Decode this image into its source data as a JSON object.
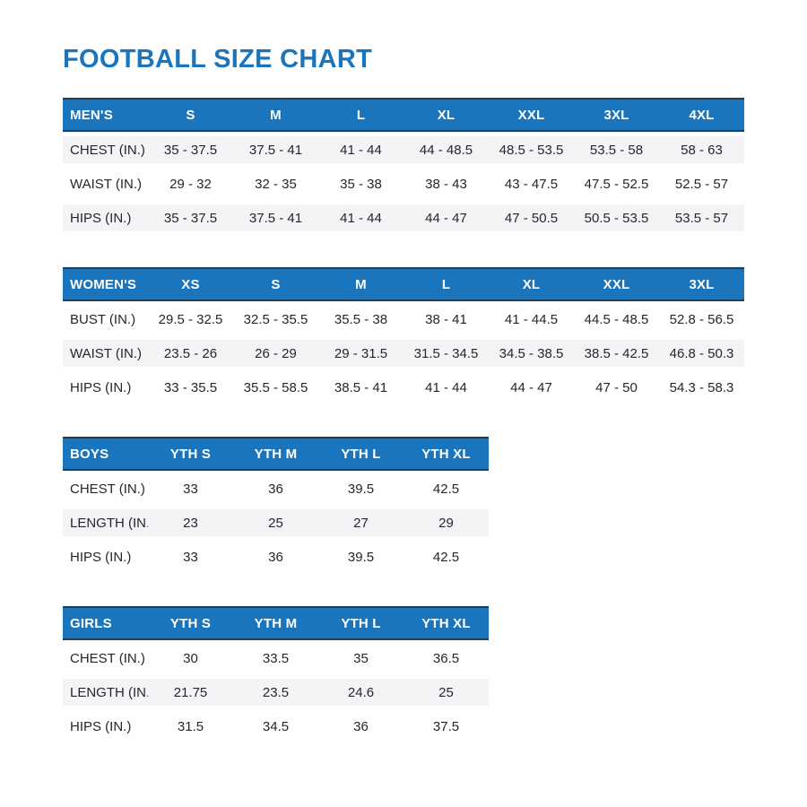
{
  "page": {
    "title": "FOOTBALL SIZE CHART"
  },
  "colors": {
    "accent": "#1b75bc",
    "accent_dark": "#1d3f5e",
    "header_text": "#ffffff",
    "body_text": "#26262b",
    "shaded_row_bg": "#f4f4f6",
    "page_bg": "#ffffff"
  },
  "tables": [
    {
      "id": "mens",
      "header": [
        "MEN'S",
        "S",
        "M",
        "L",
        "XL",
        "XXL",
        "3XL",
        "4XL"
      ],
      "rows": [
        {
          "label": "CHEST (IN.)",
          "values": [
            "35 - 37.5",
            "37.5 - 41",
            "41 - 44",
            "44 - 48.5",
            "48.5 - 53.5",
            "53.5 - 58",
            "58 - 63"
          ],
          "shaded": true
        },
        {
          "label": "WAIST (IN.)",
          "values": [
            "29 - 32",
            "32 - 35",
            "35 - 38",
            "38 - 43",
            "43 - 47.5",
            "47.5 - 52.5",
            "52.5 - 57"
          ],
          "shaded": false
        },
        {
          "label": "HIPS (IN.)",
          "values": [
            "35 - 37.5",
            "37.5 - 41",
            "41 - 44",
            "44 - 47",
            "47 - 50.5",
            "50.5 - 53.5",
            "53.5 - 57"
          ],
          "shaded": true
        }
      ]
    },
    {
      "id": "womens",
      "header": [
        "WOMEN'S",
        "XS",
        "S",
        "M",
        "L",
        "XL",
        "XXL",
        "3XL"
      ],
      "rows": [
        {
          "label": "BUST (IN.)",
          "values": [
            "29.5 - 32.5",
            "32.5 - 35.5",
            "35.5 - 38",
            "38 - 41",
            "41 - 44.5",
            "44.5 - 48.5",
            "52.8 - 56.5"
          ],
          "shaded": false
        },
        {
          "label": "WAIST (IN.)",
          "values": [
            "23.5 - 26",
            "26 - 29",
            "29 - 31.5",
            "31.5 - 34.5",
            "34.5 - 38.5",
            "38.5 - 42.5",
            "46.8 - 50.3"
          ],
          "shaded": true
        },
        {
          "label": "HIPS (IN.)",
          "values": [
            "33 - 35.5",
            "35.5 - 58.5",
            "38.5 - 41",
            "41 - 44",
            "44 - 47",
            "47 - 50",
            "54.3 - 58.3"
          ],
          "shaded": false
        }
      ]
    },
    {
      "id": "boys",
      "header": [
        "BOYS",
        "YTH S",
        "YTH M",
        "YTH L",
        "YTH XL"
      ],
      "rows": [
        {
          "label": "CHEST (IN.)",
          "values": [
            "33",
            "36",
            "39.5",
            "42.5"
          ],
          "shaded": false
        },
        {
          "label": "LENGTH (IN.)",
          "values": [
            "23",
            "25",
            "27",
            "29"
          ],
          "shaded": true
        },
        {
          "label": "HIPS (IN.)",
          "values": [
            "33",
            "36",
            "39.5",
            "42.5"
          ],
          "shaded": false
        }
      ]
    },
    {
      "id": "girls",
      "header": [
        "GIRLS",
        "YTH S",
        "YTH M",
        "YTH L",
        "YTH XL"
      ],
      "rows": [
        {
          "label": "CHEST (IN.)",
          "values": [
            "30",
            "33.5",
            "35",
            "36.5"
          ],
          "shaded": false
        },
        {
          "label": "LENGTH (IN.)",
          "values": [
            "21.75",
            "23.5",
            "24.6",
            "25"
          ],
          "shaded": true
        },
        {
          "label": "HIPS (IN.)",
          "values": [
            "31.5",
            "34.5",
            "36",
            "37.5"
          ],
          "shaded": false
        }
      ]
    }
  ]
}
